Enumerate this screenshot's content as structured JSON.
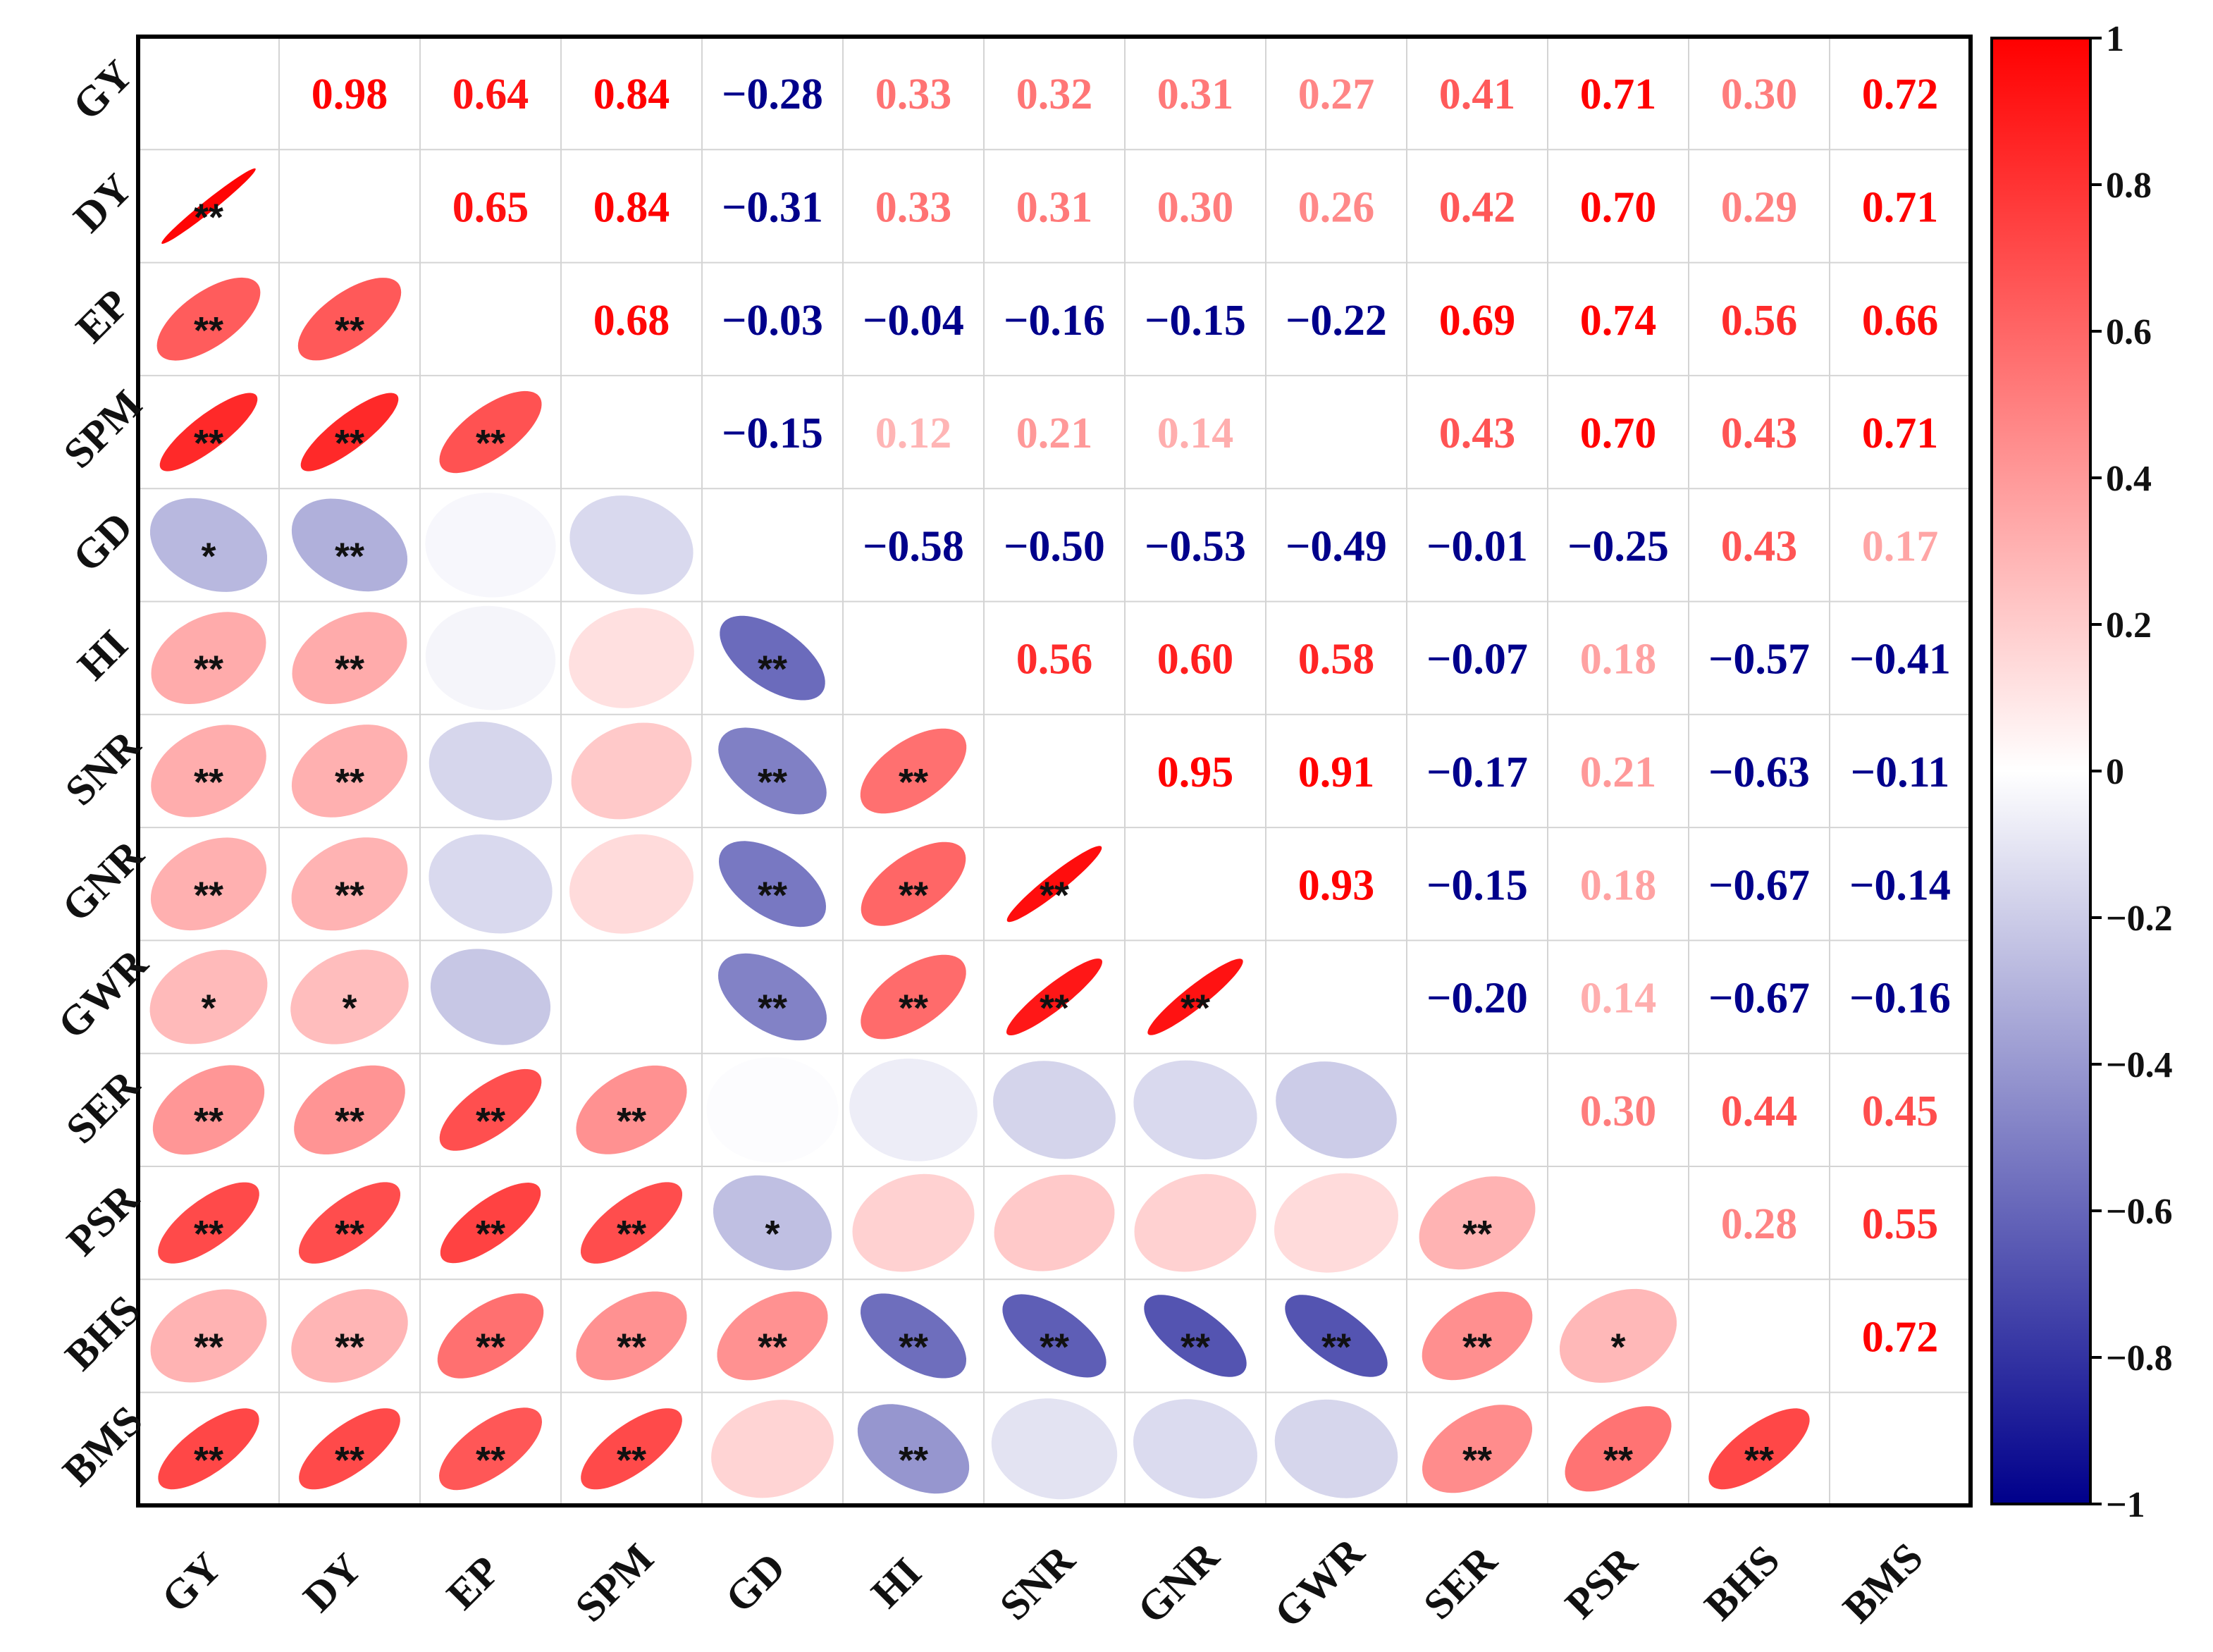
{
  "chart_data": {
    "type": "heatmap",
    "subtype": "correlation-matrix",
    "variables": [
      "GY",
      "DY",
      "EP",
      "SPM",
      "GD",
      "HI",
      "SNR",
      "GNR",
      "GWR",
      "SER",
      "PSR",
      "BHS",
      "BMS"
    ],
    "upper_labels": [
      [
        null,
        "0.98",
        "0.64",
        "0.84",
        "−0.28",
        "0.33",
        "0.32",
        "0.31",
        "0.27",
        "0.41",
        "0.71",
        "0.30",
        "0.72"
      ],
      [
        null,
        null,
        "0.65",
        "0.84",
        "−0.31",
        "0.33",
        "0.31",
        "0.30",
        "0.26",
        "0.42",
        "0.70",
        "0.29",
        "0.71"
      ],
      [
        null,
        null,
        null,
        "0.68",
        "−0.03",
        "−0.04",
        "−0.16",
        "−0.15",
        "−0.22",
        "0.69",
        "0.74",
        "0.56",
        "0.66"
      ],
      [
        null,
        null,
        null,
        null,
        "−0.15",
        "0.12",
        "0.21",
        "0.14",
        null,
        "0.43",
        "0.70",
        "0.43",
        "0.71"
      ],
      [
        null,
        null,
        null,
        null,
        null,
        "−0.58",
        "−0.50",
        "−0.53",
        "−0.49",
        "−0.01",
        "−0.25",
        "0.43",
        "0.17"
      ],
      [
        null,
        null,
        null,
        null,
        null,
        null,
        "0.56",
        "0.60",
        "0.58",
        "−0.07",
        "0.18",
        "−0.57",
        "−0.41"
      ],
      [
        null,
        null,
        null,
        null,
        null,
        null,
        null,
        "0.95",
        "0.91",
        "−0.17",
        "0.21",
        "−0.63",
        "−0.11"
      ],
      [
        null,
        null,
        null,
        null,
        null,
        null,
        null,
        null,
        "0.93",
        "−0.15",
        "0.18",
        "−0.67",
        "−0.14"
      ],
      [
        null,
        null,
        null,
        null,
        null,
        null,
        null,
        null,
        null,
        "−0.20",
        "0.14",
        "−0.67",
        "−0.16"
      ],
      [
        null,
        null,
        null,
        null,
        null,
        null,
        null,
        null,
        null,
        null,
        "0.30",
        "0.44",
        "0.45"
      ],
      [
        null,
        null,
        null,
        null,
        null,
        null,
        null,
        null,
        null,
        null,
        null,
        "0.28",
        "0.55"
      ],
      [
        null,
        null,
        null,
        null,
        null,
        null,
        null,
        null,
        null,
        null,
        null,
        null,
        "0.72"
      ],
      [
        null,
        null,
        null,
        null,
        null,
        null,
        null,
        null,
        null,
        null,
        null,
        null,
        null
      ]
    ],
    "significance": [
      [
        null,
        null,
        null,
        null,
        null,
        null,
        null,
        null,
        null,
        null,
        null,
        null,
        null
      ],
      [
        "**",
        null,
        null,
        null,
        null,
        null,
        null,
        null,
        null,
        null,
        null,
        null,
        null
      ],
      [
        "**",
        "**",
        null,
        null,
        null,
        null,
        null,
        null,
        null,
        null,
        null,
        null,
        null
      ],
      [
        "**",
        "**",
        "**",
        null,
        null,
        null,
        null,
        null,
        null,
        null,
        null,
        null,
        null
      ],
      [
        "*",
        "**",
        "",
        "",
        null,
        null,
        null,
        null,
        null,
        null,
        null,
        null,
        null
      ],
      [
        "**",
        "**",
        "",
        "",
        "**",
        null,
        null,
        null,
        null,
        null,
        null,
        null,
        null
      ],
      [
        "**",
        "**",
        "",
        "",
        "**",
        "**",
        null,
        null,
        null,
        null,
        null,
        null,
        null
      ],
      [
        "**",
        "**",
        "",
        "",
        "**",
        "**",
        "**",
        null,
        null,
        null,
        null,
        null,
        null
      ],
      [
        "*",
        "*",
        "",
        "",
        "**",
        "**",
        "**",
        "**",
        null,
        null,
        null,
        null,
        null
      ],
      [
        "**",
        "**",
        "**",
        "**",
        "",
        "",
        "",
        "",
        "",
        null,
        null,
        null,
        null
      ],
      [
        "**",
        "**",
        "**",
        "**",
        "*",
        "",
        "",
        "",
        "",
        "**",
        null,
        null,
        null
      ],
      [
        "**",
        "**",
        "**",
        "**",
        "**",
        "**",
        "**",
        "**",
        "**",
        "**",
        "*",
        null,
        null
      ],
      [
        "**",
        "**",
        "**",
        "**",
        "",
        "**",
        "",
        "",
        "",
        "**",
        "**",
        "**",
        null
      ]
    ],
    "colorbar": {
      "range": [
        -1,
        1
      ],
      "ticks": [
        "1",
        "0.8",
        "0.6",
        "0.4",
        "0.2",
        "0",
        "−0.2",
        "−0.4",
        "−0.6",
        "−0.8",
        "−1"
      ],
      "colors": {
        "negative": "#00008b",
        "zero": "#ffffff",
        "positive": "#ff0000"
      }
    }
  }
}
